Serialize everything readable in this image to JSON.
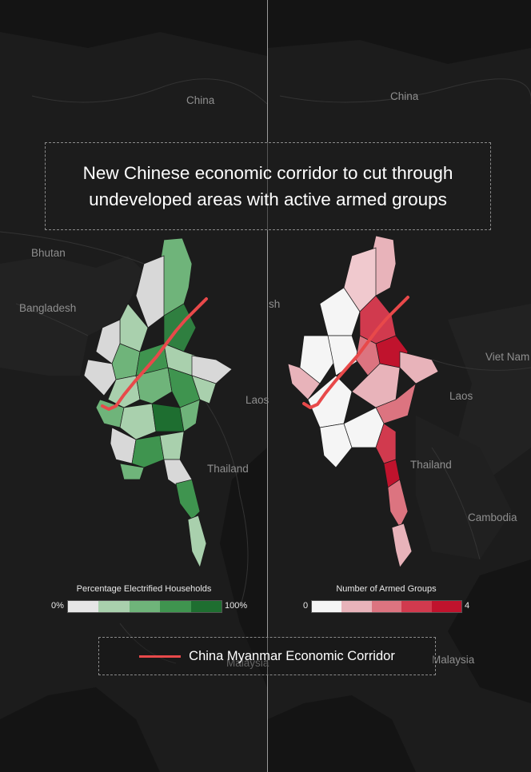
{
  "title": "New Chinese economic corridor to cut through undeveloped areas with active armed groups",
  "left_map": {
    "labels": {
      "china": "China",
      "bhutan": "Bhutan",
      "bangladesh": "Bangladesh",
      "laos": "Laos",
      "thailand": "Thailand",
      "malaysia": "Malaysia"
    },
    "legend": {
      "title": "Percentage Electrified Households",
      "min": "0%",
      "max": "100%",
      "colors": [
        "#e6e6e6",
        "#a9d0ad",
        "#6fb47a",
        "#3f944f",
        "#1e6e30"
      ]
    }
  },
  "right_map": {
    "labels": {
      "china": "China",
      "bangladesh": "sh",
      "viet_nam": "Viet Nam",
      "laos": "Laos",
      "thailand": "Thailand",
      "cambodia": "Cambodia",
      "malaysia": "Malaysia"
    },
    "legend": {
      "title": "Number of Armed Groups",
      "min": "0",
      "max": "4",
      "colors": [
        "#f5f5f5",
        "#e8b3ba",
        "#dc7480",
        "#d13a4e",
        "#c0132d"
      ]
    }
  },
  "corridor_legend": {
    "label": "China Myanmar Economic Corridor",
    "color": "#e8494a"
  },
  "colors": {
    "background": "#0d0d0d",
    "land": "#1f1f1f",
    "borders": "#3a3a3a",
    "divider": "#9a9a9a"
  }
}
